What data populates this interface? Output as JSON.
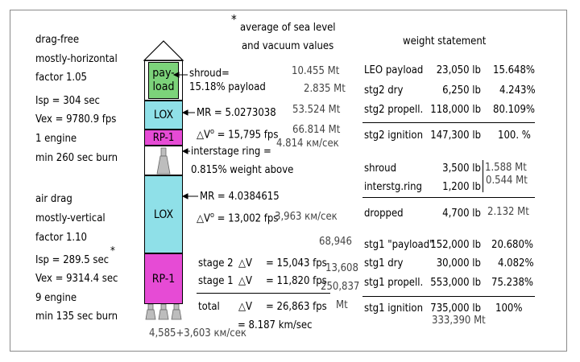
{
  "colors": {
    "payload": "#7cd37a",
    "lox": "#8fe0e8",
    "rp1": "#e64bd5",
    "hull": "#ffffff",
    "grey_text": "#444444"
  },
  "note": {
    "star": "*",
    "line1": "average of sea level",
    "line2": "and vacuum values"
  },
  "left_top": {
    "l1": "drag-free",
    "l2": "mostly-horizontal",
    "l3": "factor 1.05",
    "l4": "Isp = 304 sec",
    "l5": "Vex = 9780.9 fps",
    "l6": "1 engine",
    "l7": "min 260 sec burn"
  },
  "left_bottom": {
    "l1": "air drag",
    "l2": "mostly-vertical",
    "l3": "factor 1.10",
    "l4": "Isp = 289.5 sec",
    "l4_star": "*",
    "l5": "Vex = 9314.4 sec",
    "l6": "9 engine",
    "l7": "min 135 sec burn"
  },
  "rocket": {
    "payload": "pay-\nload",
    "lox1": "LOX",
    "rp1_1": "RP-1",
    "lox2": "LOX",
    "rp1_2": "RP-1"
  },
  "mid": {
    "shroud1": "shroud=",
    "shroud2": "15.18% payload",
    "mr1": "MR = 5.0273038",
    "dv1": "V",
    "dv1_sup": "o",
    "dv1_val": " = 15,795 fps",
    "interstage1": "interstage ring =",
    "interstage2": "0.815% weight above",
    "mr2": "MR = 4.0384615",
    "dv2": "V",
    "dv2_sup": "o",
    "dv2_val": " = 13,002 fps",
    "s2_label": "stage 2",
    "s2_dv": "V",
    "s2_val": "= 15,043 fps",
    "s1_label": "stage 1",
    "s1_dv": "V",
    "s1_val": "= 11,820 fps",
    "tot_label": "total",
    "tot_dv": "V",
    "tot_val": "= 26,863 fps",
    "tot_kms": "= 8.187 km/sec"
  },
  "grey_annotations": {
    "a1": "10.455 Mt",
    "a2": "2.835 Mt",
    "a3": "53.524 Mt",
    "a4": "66.814 Mt",
    "a5": "4.814 км/сек",
    "a6": "3,963 км/сек",
    "a7": "68,946",
    "a8": "13,608",
    "a9": "250,837",
    "a10": "Mt",
    "a11": "4,585+3,603 км/сек",
    "a12": "1.588 Mt",
    "a13": "0.544 Mt",
    "a14": "2.132 Mt",
    "a15": "333,390 Mt"
  },
  "weight": {
    "title": "weight statement",
    "rows1": [
      {
        "label": "LEO payload",
        "lb": "23,050 lb",
        "pct": "15.648%"
      },
      {
        "label": "stg2 dry",
        "lb": "6,250 lb",
        "pct": "4.243%"
      },
      {
        "label": "stg2 propell.",
        "lb": "118,000 lb",
        "pct": "80.109%"
      }
    ],
    "ign2": {
      "label": "stg2 ignition",
      "lb": "147,300 lb",
      "pct": "100. %"
    },
    "rows2": [
      {
        "label": "shroud",
        "lb": "3,500 lb"
      },
      {
        "label": "interstg.ring",
        "lb": "1,200 lb"
      }
    ],
    "dropped": {
      "label": "dropped",
      "lb": "4,700 lb"
    },
    "rows3": [
      {
        "label": "stg1 \"payload\"",
        "lb": "152,000 lb",
        "pct": "20.680%"
      },
      {
        "label": "stg1 dry",
        "lb": "30,000 lb",
        "pct": "4.082%"
      },
      {
        "label": "stg1 propell.",
        "lb": "553,000 lb",
        "pct": "75.238%"
      }
    ],
    "ign1": {
      "label": "stg1 ignition",
      "lb": "735,000 lb",
      "pct": "100%"
    }
  }
}
